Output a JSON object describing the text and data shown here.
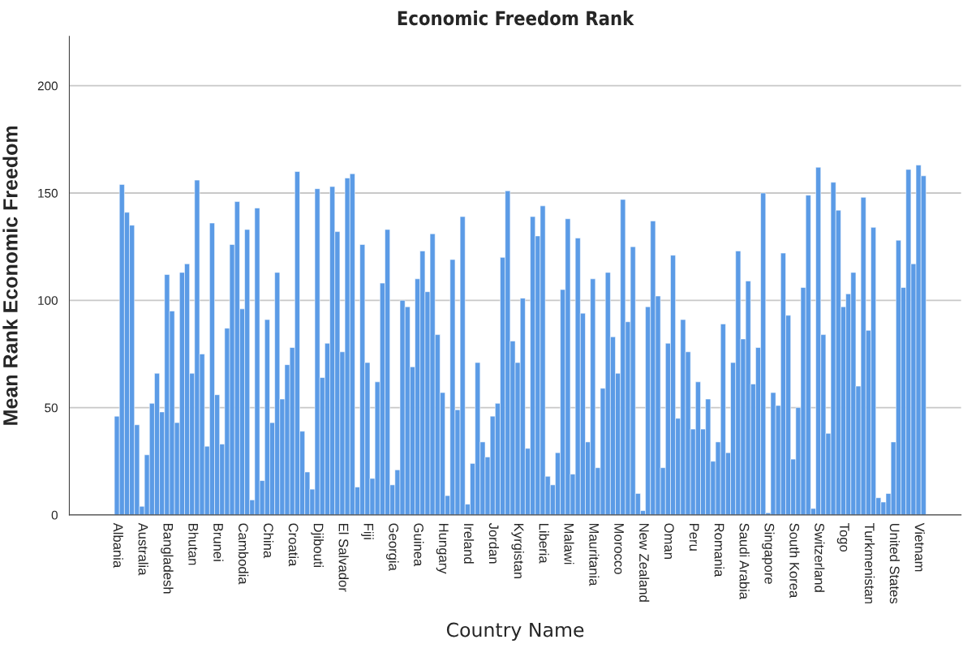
{
  "chart_data": {
    "type": "bar",
    "title": "Economic Freedom Rank",
    "xlabel": "Country Name",
    "ylabel": "Mean Rank Economic Freedom",
    "categories": [
      "Albania",
      null,
      null,
      null,
      null,
      "Australia",
      null,
      null,
      null,
      null,
      "Bangladesh",
      null,
      null,
      null,
      null,
      "Bhutan",
      null,
      null,
      null,
      null,
      "Brunei",
      null,
      null,
      null,
      null,
      "Cambodia",
      null,
      null,
      null,
      null,
      "China",
      null,
      null,
      null,
      null,
      "Croatia",
      null,
      null,
      null,
      null,
      "Djibouti",
      null,
      null,
      null,
      null,
      "El Salvador",
      null,
      null,
      null,
      null,
      "Fiji",
      null,
      null,
      null,
      null,
      "Georgia",
      null,
      null,
      null,
      null,
      "Guinea",
      null,
      null,
      null,
      null,
      "Hungary",
      null,
      null,
      null,
      null,
      "Ireland",
      null,
      null,
      null,
      null,
      "Jordan",
      null,
      null,
      null,
      null,
      "Kyrgistan",
      null,
      null,
      null,
      null,
      "Liberia",
      null,
      null,
      null,
      null,
      "Malawi",
      null,
      null,
      null,
      null,
      "Mauritania",
      null,
      null,
      null,
      null,
      "Morocco",
      null,
      null,
      null,
      null,
      "New Zealand",
      null,
      null,
      null,
      null,
      "Oman",
      null,
      null,
      null,
      null,
      "Peru",
      null,
      null,
      null,
      null,
      "Romania",
      null,
      null,
      null,
      null,
      "Saudi Arabia",
      null,
      null,
      null,
      null,
      "Singapore",
      null,
      null,
      null,
      null,
      "South Korea",
      null,
      null,
      null,
      null,
      "Switzerland",
      null,
      null,
      null,
      null,
      "Togo",
      null,
      null,
      null,
      null,
      "Turkmenistan",
      null,
      null,
      null,
      null,
      "United States",
      null,
      null,
      null,
      null,
      "Vietnam",
      null
    ],
    "values": [
      46,
      154,
      141,
      135,
      42,
      4,
      28,
      52,
      66,
      48,
      112,
      95,
      43,
      113,
      117,
      66,
      156,
      75,
      32,
      136,
      56,
      33,
      87,
      126,
      146,
      96,
      133,
      7,
      143,
      16,
      91,
      43,
      113,
      54,
      70,
      78,
      160,
      39,
      20,
      12,
      152,
      64,
      80,
      153,
      132,
      76,
      157,
      159,
      13,
      126,
      71,
      17,
      62,
      108,
      133,
      14,
      21,
      100,
      97,
      69,
      110,
      123,
      104,
      131,
      84,
      57,
      9,
      119,
      49,
      139,
      5,
      24,
      71,
      34,
      27,
      46,
      52,
      120,
      151,
      81,
      71,
      101,
      31,
      139,
      130,
      144,
      18,
      14,
      29,
      105,
      138,
      19,
      129,
      94,
      34,
      110,
      22,
      59,
      113,
      83,
      66,
      147,
      90,
      125,
      10,
      2,
      97,
      137,
      102,
      22,
      80,
      121,
      45,
      91,
      76,
      40,
      62,
      40,
      54,
      25,
      34,
      89,
      29,
      71,
      123,
      82,
      109,
      61,
      78,
      150,
      1,
      57,
      51,
      122,
      93,
      26,
      50,
      106,
      149,
      3,
      162,
      84,
      38,
      155,
      142,
      97,
      103,
      113,
      60,
      148,
      86,
      134,
      8,
      6,
      10,
      34,
      128,
      106,
      161,
      117,
      163,
      158
    ],
    "color": "#5b9be6",
    "ylim": [
      0,
      223
    ],
    "yticks": [
      0,
      50,
      100,
      150,
      200
    ],
    "grid": "y",
    "legend": false
  }
}
